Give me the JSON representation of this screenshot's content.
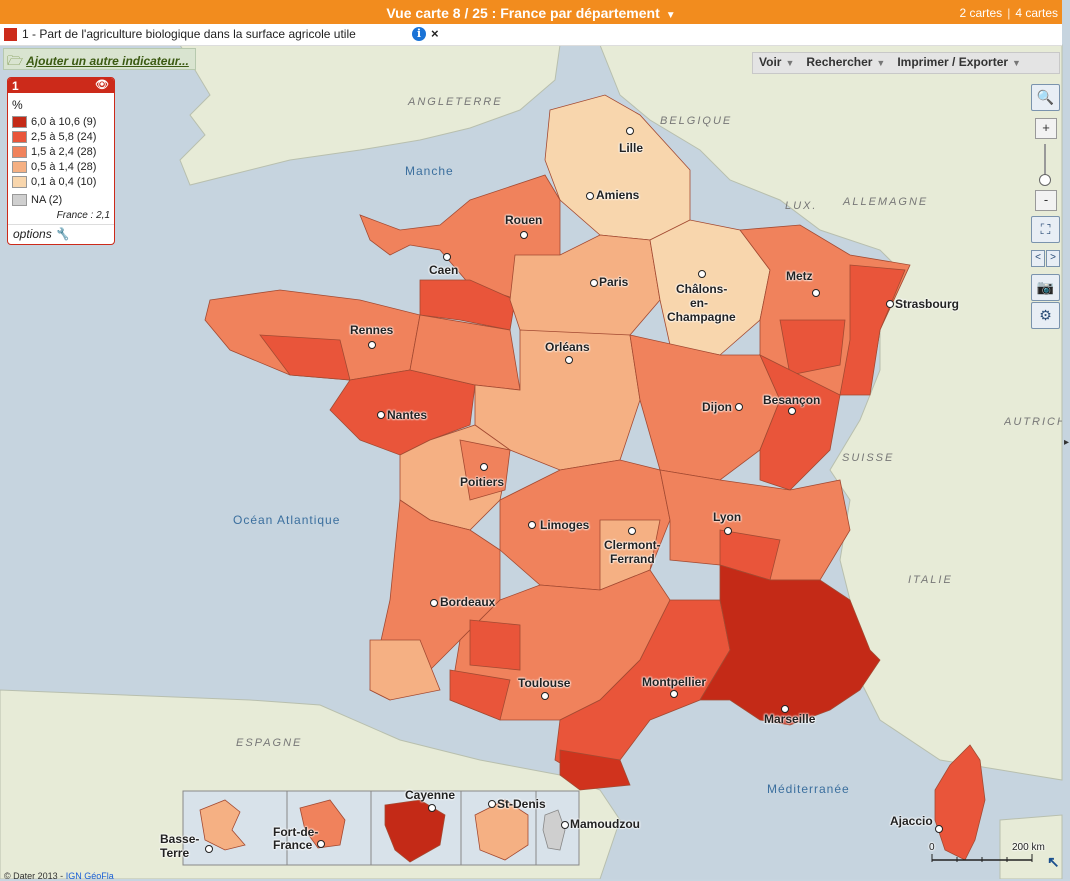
{
  "topbar": {
    "title": "Vue carte 8 / 25 : France par département",
    "cards_2": "2 cartes",
    "cards_4": "4 cartes"
  },
  "indicator": {
    "label": "1 - Part de l'agriculture biologique dans la surface agricole utile",
    "color": "#cc2a1a"
  },
  "add_indicator": "Ajouter un autre indicateur...",
  "toolbar": {
    "voir": "Voir",
    "rechercher": "Rechercher",
    "imprimer": "Imprimer / Exporter"
  },
  "legend": {
    "number": "1",
    "unit": "%",
    "classes": [
      {
        "label": "6,0 à 10,6 (9)",
        "color": "#c42a17"
      },
      {
        "label": "2,5 à 5,8 (24)",
        "color": "#e9553a"
      },
      {
        "label": "1,5 à 2,4 (28)",
        "color": "#f0825c"
      },
      {
        "label": "0,5 à 1,4 (28)",
        "color": "#f5b083"
      },
      {
        "label": "0,1 à 0,4 (10)",
        "color": "#f8d6ad"
      },
      {
        "label": "NA (2)",
        "color": "#cfcfcf"
      }
    ],
    "france_value": "France : 2,1",
    "options": "options"
  },
  "map": {
    "countries": [
      "ANGLETERRE",
      "BELGIQUE",
      "LUX.",
      "ALLEMAGNE",
      "SUISSE",
      "AUTRICHE",
      "ITALIE",
      "ESPAGNE"
    ],
    "seas": [
      "Manche",
      "Océan Atlantique",
      "Méditerranée"
    ],
    "cities": [
      "Lille",
      "Amiens",
      "Rouen",
      "Caen",
      "Paris",
      "Châlons-",
      "en-",
      "Champagne",
      "Metz",
      "Strasbourg",
      "Rennes",
      "Orléans",
      "Nantes",
      "Dijon",
      "Besançon",
      "Poitiers",
      "Limoges",
      "Clermont-",
      "Ferrand",
      "Lyon",
      "Bordeaux",
      "Toulouse",
      "Montpellier",
      "Marseille",
      "Ajaccio"
    ],
    "overseas": [
      "Basse-",
      "Terre",
      "Fort-de-",
      "France",
      "Cayenne",
      "St-Denis",
      "Mamoudzou"
    ],
    "scale_zero": "0",
    "scale_label": "200 km"
  },
  "footer": {
    "copyright": "© Dater 2013 -",
    "source": "IGN GéoFla"
  }
}
